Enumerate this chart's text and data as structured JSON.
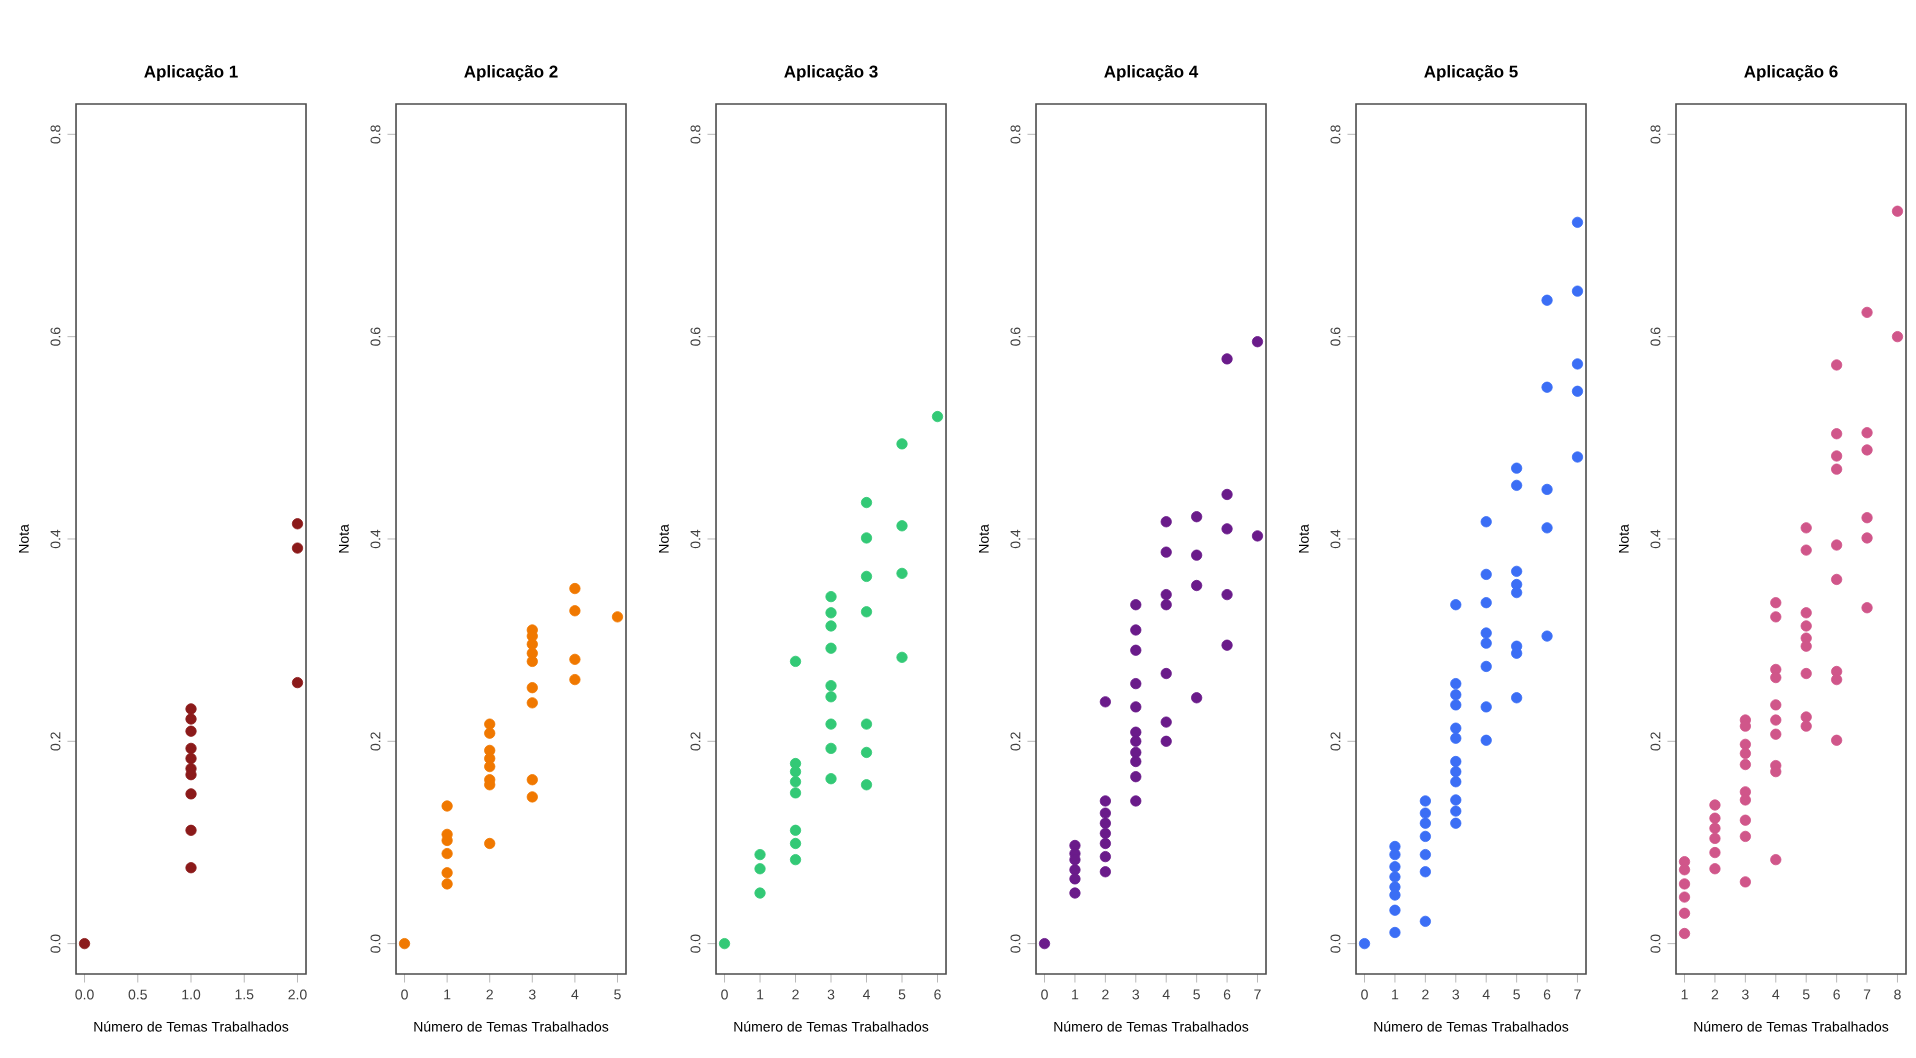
{
  "chart_data": [
    {
      "type": "scatter",
      "title": "Aplicação 1",
      "xlabel": "Número de Temas Trabalhados",
      "ylabel": "Nota",
      "color": "#8b1a1a",
      "x": [
        0,
        1,
        1,
        1,
        1,
        1,
        1,
        1,
        1,
        1,
        1,
        2,
        2,
        2
      ],
      "values": [
        0,
        0.232,
        0.222,
        0.21,
        0.193,
        0.183,
        0.173,
        0.167,
        0.148,
        0.112,
        0.075,
        0.415,
        0.391,
        0.258
      ],
      "xlim": [
        -0.08,
        2.08
      ],
      "ylim": [
        -0.03,
        0.83
      ],
      "xticks": [
        {
          "value": 0,
          "label": "0.0"
        },
        {
          "value": 0.5,
          "label": "0.5"
        },
        {
          "value": 1,
          "label": "1.0"
        },
        {
          "value": 1.5,
          "label": "1.5"
        },
        {
          "value": 2,
          "label": "2.0"
        }
      ],
      "yticks": [
        {
          "value": 0,
          "label": "0.0"
        },
        {
          "value": 0.2,
          "label": "0.2"
        },
        {
          "value": 0.4,
          "label": "0.4"
        },
        {
          "value": 0.6,
          "label": "0.6"
        },
        {
          "value": 0.8,
          "label": "0.8"
        }
      ]
    },
    {
      "type": "scatter",
      "title": "Aplicação 2",
      "xlabel": "Número de Temas Trabalhados",
      "ylabel": "Nota",
      "color": "#f07800",
      "x": [
        0,
        1,
        1,
        1,
        1,
        1,
        1,
        2,
        2,
        2,
        2,
        2,
        2,
        2,
        2,
        3,
        3,
        3,
        3,
        3,
        3,
        3,
        3,
        3,
        4,
        4,
        4,
        4,
        5
      ],
      "values": [
        0,
        0.136,
        0.108,
        0.102,
        0.089,
        0.07,
        0.059,
        0.217,
        0.208,
        0.191,
        0.183,
        0.175,
        0.162,
        0.157,
        0.099,
        0.31,
        0.304,
        0.296,
        0.287,
        0.279,
        0.253,
        0.238,
        0.162,
        0.145,
        0.351,
        0.329,
        0.281,
        0.261,
        0.323
      ],
      "xlim": [
        -0.2,
        5.2
      ],
      "ylim": [
        -0.03,
        0.83
      ],
      "xticks": [
        0,
        1,
        2,
        3,
        4,
        5
      ],
      "yticks": [
        {
          "value": 0,
          "label": "0.0"
        },
        {
          "value": 0.2,
          "label": "0.2"
        },
        {
          "value": 0.4,
          "label": "0.4"
        },
        {
          "value": 0.6,
          "label": "0.6"
        },
        {
          "value": 0.8,
          "label": "0.8"
        }
      ]
    },
    {
      "type": "scatter",
      "title": "Aplicação 3",
      "xlabel": "Número de Temas Trabalhados",
      "ylabel": "Nota",
      "color": "#33c976",
      "x": [
        0,
        1,
        1,
        1,
        2,
        2,
        2,
        2,
        2,
        2,
        2,
        2,
        3,
        3,
        3,
        3,
        3,
        3,
        3,
        3,
        3,
        4,
        4,
        4,
        4,
        4,
        4,
        4,
        5,
        5,
        5,
        5,
        6
      ],
      "values": [
        0,
        0.088,
        0.074,
        0.05,
        0.279,
        0.178,
        0.17,
        0.16,
        0.149,
        0.112,
        0.099,
        0.083,
        0.343,
        0.327,
        0.314,
        0.292,
        0.255,
        0.244,
        0.217,
        0.193,
        0.163,
        0.436,
        0.401,
        0.363,
        0.328,
        0.217,
        0.189,
        0.157,
        0.494,
        0.413,
        0.366,
        0.283,
        0.521
      ],
      "xlim": [
        -0.24,
        6.24
      ],
      "ylim": [
        -0.03,
        0.83
      ],
      "xticks": [
        0,
        1,
        2,
        3,
        4,
        5,
        6
      ],
      "yticks": [
        {
          "value": 0,
          "label": "0.0"
        },
        {
          "value": 0.2,
          "label": "0.2"
        },
        {
          "value": 0.4,
          "label": "0.4"
        },
        {
          "value": 0.6,
          "label": "0.6"
        },
        {
          "value": 0.8,
          "label": "0.8"
        }
      ]
    },
    {
      "type": "scatter",
      "title": "Aplicação 4",
      "xlabel": "Número de Temas Trabalhados",
      "ylabel": "Nota",
      "color": "#6a1b8a",
      "x": [
        0,
        1,
        1,
        1,
        1,
        1,
        1,
        2,
        2,
        2,
        2,
        2,
        2,
        2,
        2,
        3,
        3,
        3,
        3,
        3,
        3,
        3,
        3,
        3,
        3,
        3,
        4,
        4,
        4,
        4,
        4,
        4,
        4,
        5,
        5,
        5,
        5,
        6,
        6,
        6,
        6,
        6,
        7,
        7
      ],
      "values": [
        0,
        0.097,
        0.089,
        0.083,
        0.073,
        0.064,
        0.05,
        0.239,
        0.141,
        0.129,
        0.119,
        0.109,
        0.099,
        0.086,
        0.071,
        0.335,
        0.31,
        0.29,
        0.257,
        0.234,
        0.209,
        0.2,
        0.189,
        0.18,
        0.165,
        0.141,
        0.417,
        0.387,
        0.345,
        0.335,
        0.267,
        0.219,
        0.2,
        0.422,
        0.384,
        0.354,
        0.243,
        0.578,
        0.444,
        0.41,
        0.345,
        0.295,
        0.595,
        0.403
      ],
      "xlim": [
        -0.28,
        7.28
      ],
      "ylim": [
        -0.03,
        0.83
      ],
      "xticks": [
        0,
        1,
        2,
        3,
        4,
        5,
        6,
        7
      ],
      "yticks": [
        {
          "value": 0,
          "label": "0.0"
        },
        {
          "value": 0.2,
          "label": "0.2"
        },
        {
          "value": 0.4,
          "label": "0.4"
        },
        {
          "value": 0.6,
          "label": "0.6"
        },
        {
          "value": 0.8,
          "label": "0.8"
        }
      ]
    },
    {
      "type": "scatter",
      "title": "Aplicação 5",
      "xlabel": "Número de Temas Trabalhados",
      "ylabel": "Nota",
      "color": "#3b6ef5",
      "x": [
        0,
        1,
        1,
        1,
        1,
        1,
        1,
        1,
        1,
        2,
        2,
        2,
        2,
        2,
        2,
        2,
        3,
        3,
        3,
        3,
        3,
        3,
        3,
        3,
        3,
        3,
        3,
        3,
        4,
        4,
        4,
        4,
        4,
        4,
        4,
        4,
        5,
        5,
        5,
        5,
        5,
        5,
        5,
        5,
        6,
        6,
        6,
        6,
        6,
        7,
        7,
        7,
        7,
        7
      ],
      "values": [
        0,
        0.096,
        0.088,
        0.076,
        0.066,
        0.056,
        0.048,
        0.033,
        0.011,
        0.141,
        0.129,
        0.119,
        0.106,
        0.088,
        0.071,
        0.022,
        0.335,
        0.257,
        0.246,
        0.236,
        0.213,
        0.203,
        0.18,
        0.17,
        0.16,
        0.142,
        0.131,
        0.119,
        0.417,
        0.365,
        0.337,
        0.307,
        0.297,
        0.274,
        0.234,
        0.201,
        0.47,
        0.453,
        0.368,
        0.355,
        0.347,
        0.294,
        0.287,
        0.243,
        0.636,
        0.55,
        0.449,
        0.411,
        0.304,
        0.713,
        0.645,
        0.573,
        0.546,
        0.481
      ],
      "xlim": [
        -0.28,
        7.28
      ],
      "ylim": [
        -0.03,
        0.83
      ],
      "xticks": [
        0,
        1,
        2,
        3,
        4,
        5,
        6,
        7
      ],
      "yticks": [
        {
          "value": 0,
          "label": "0.0"
        },
        {
          "value": 0.2,
          "label": "0.2"
        },
        {
          "value": 0.4,
          "label": "0.4"
        },
        {
          "value": 0.6,
          "label": "0.6"
        },
        {
          "value": 0.8,
          "label": "0.8"
        }
      ]
    },
    {
      "type": "scatter",
      "title": "Aplicação 6",
      "xlabel": "Número de Temas Trabalhados",
      "ylabel": "Nota",
      "color": "#d0568a",
      "x": [
        1,
        1,
        1,
        1,
        1,
        1,
        2,
        2,
        2,
        2,
        2,
        2,
        3,
        3,
        3,
        3,
        3,
        3,
        3,
        3,
        3,
        3,
        4,
        4,
        4,
        4,
        4,
        4,
        4,
        4,
        4,
        4,
        5,
        5,
        5,
        5,
        5,
        5,
        5,
        5,
        5,
        6,
        6,
        6,
        6,
        6,
        6,
        6,
        6,
        6,
        7,
        7,
        7,
        7,
        7,
        7,
        8,
        8
      ],
      "values": [
        0.081,
        0.073,
        0.059,
        0.046,
        0.03,
        0.01,
        0.137,
        0.124,
        0.114,
        0.104,
        0.09,
        0.074,
        0.221,
        0.215,
        0.197,
        0.188,
        0.177,
        0.15,
        0.142,
        0.122,
        0.106,
        0.061,
        0.337,
        0.323,
        0.271,
        0.263,
        0.236,
        0.221,
        0.207,
        0.176,
        0.17,
        0.083,
        0.411,
        0.389,
        0.327,
        0.314,
        0.302,
        0.294,
        0.267,
        0.224,
        0.215,
        0.572,
        0.504,
        0.482,
        0.469,
        0.394,
        0.36,
        0.269,
        0.261,
        0.201,
        0.624,
        0.505,
        0.488,
        0.421,
        0.401,
        0.332,
        0.724,
        0.6
      ],
      "xlim": [
        0.72,
        8.28
      ],
      "ylim": [
        -0.03,
        0.83
      ],
      "xticks": [
        1,
        2,
        3,
        4,
        5,
        6,
        7,
        8
      ],
      "yticks": [
        {
          "value": 0,
          "label": "0.0"
        },
        {
          "value": 0.2,
          "label": "0.2"
        },
        {
          "value": 0.4,
          "label": "0.4"
        },
        {
          "value": 0.6,
          "label": "0.6"
        },
        {
          "value": 0.8,
          "label": "0.8"
        }
      ]
    }
  ]
}
